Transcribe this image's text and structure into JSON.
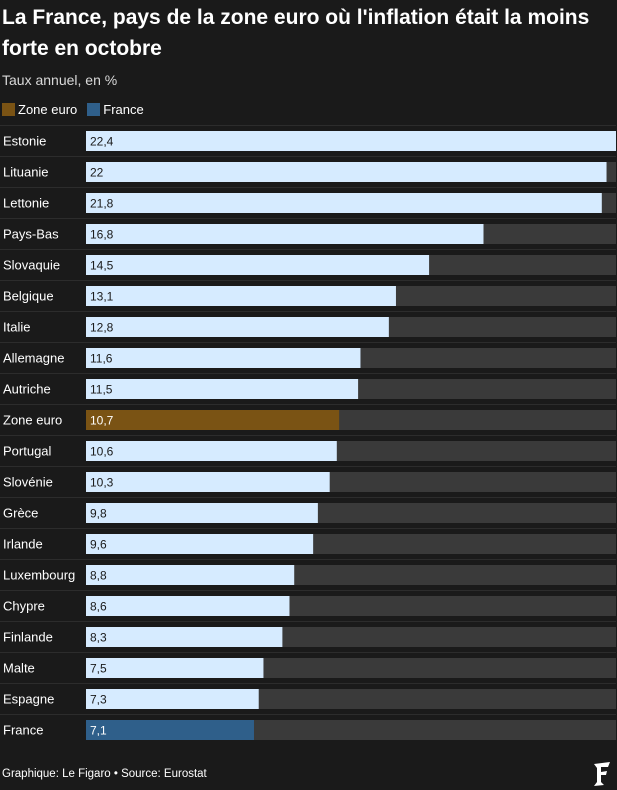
{
  "title": "La France, pays de la zone euro où l'inflation était la moins forte en octobre",
  "subtitle": "Taux annuel, en %",
  "legend": [
    {
      "label": "Zone euro",
      "color": "#7a5314"
    },
    {
      "label": "France",
      "color": "#2f5f8a"
    }
  ],
  "footer": "Graphique: Le Figaro • Source: Eurostat",
  "colors": {
    "default_bar": "#d6ebff",
    "track": "#3a3a3a",
    "zone_euro": "#7a5314",
    "france": "#2f5f8a"
  },
  "chart_data": {
    "type": "bar",
    "orientation": "horizontal",
    "title": "La France, pays de la zone euro où l'inflation était la moins forte en octobre",
    "subtitle": "Taux annuel, en %",
    "xlim": [
      0,
      22.4
    ],
    "grid": false,
    "legend_position": "top-left",
    "categories": [
      "Estonie",
      "Lituanie",
      "Lettonie",
      "Pays-Bas",
      "Slovaquie",
      "Belgique",
      "Italie",
      "Allemagne",
      "Autriche",
      "Zone euro",
      "Portugal",
      "Slovénie",
      "Grèce",
      "Irlande",
      "Luxembourg",
      "Chypre",
      "Finlande",
      "Malte",
      "Espagne",
      "France"
    ],
    "values": [
      22.4,
      22,
      21.8,
      16.8,
      14.5,
      13.1,
      12.8,
      11.6,
      11.5,
      10.7,
      10.6,
      10.3,
      9.8,
      9.6,
      8.8,
      8.6,
      8.3,
      7.5,
      7.3,
      7.1
    ],
    "value_labels": [
      "22,4",
      "22",
      "21,8",
      "16,8",
      "14,5",
      "13,1",
      "12,8",
      "11,6",
      "11,5",
      "10,7",
      "10,6",
      "10,3",
      "9,8",
      "9,6",
      "8,8",
      "8,6",
      "8,3",
      "7,5",
      "7,3",
      "7,1"
    ],
    "highlights": {
      "Zone euro": "zone_euro",
      "France": "france"
    }
  }
}
